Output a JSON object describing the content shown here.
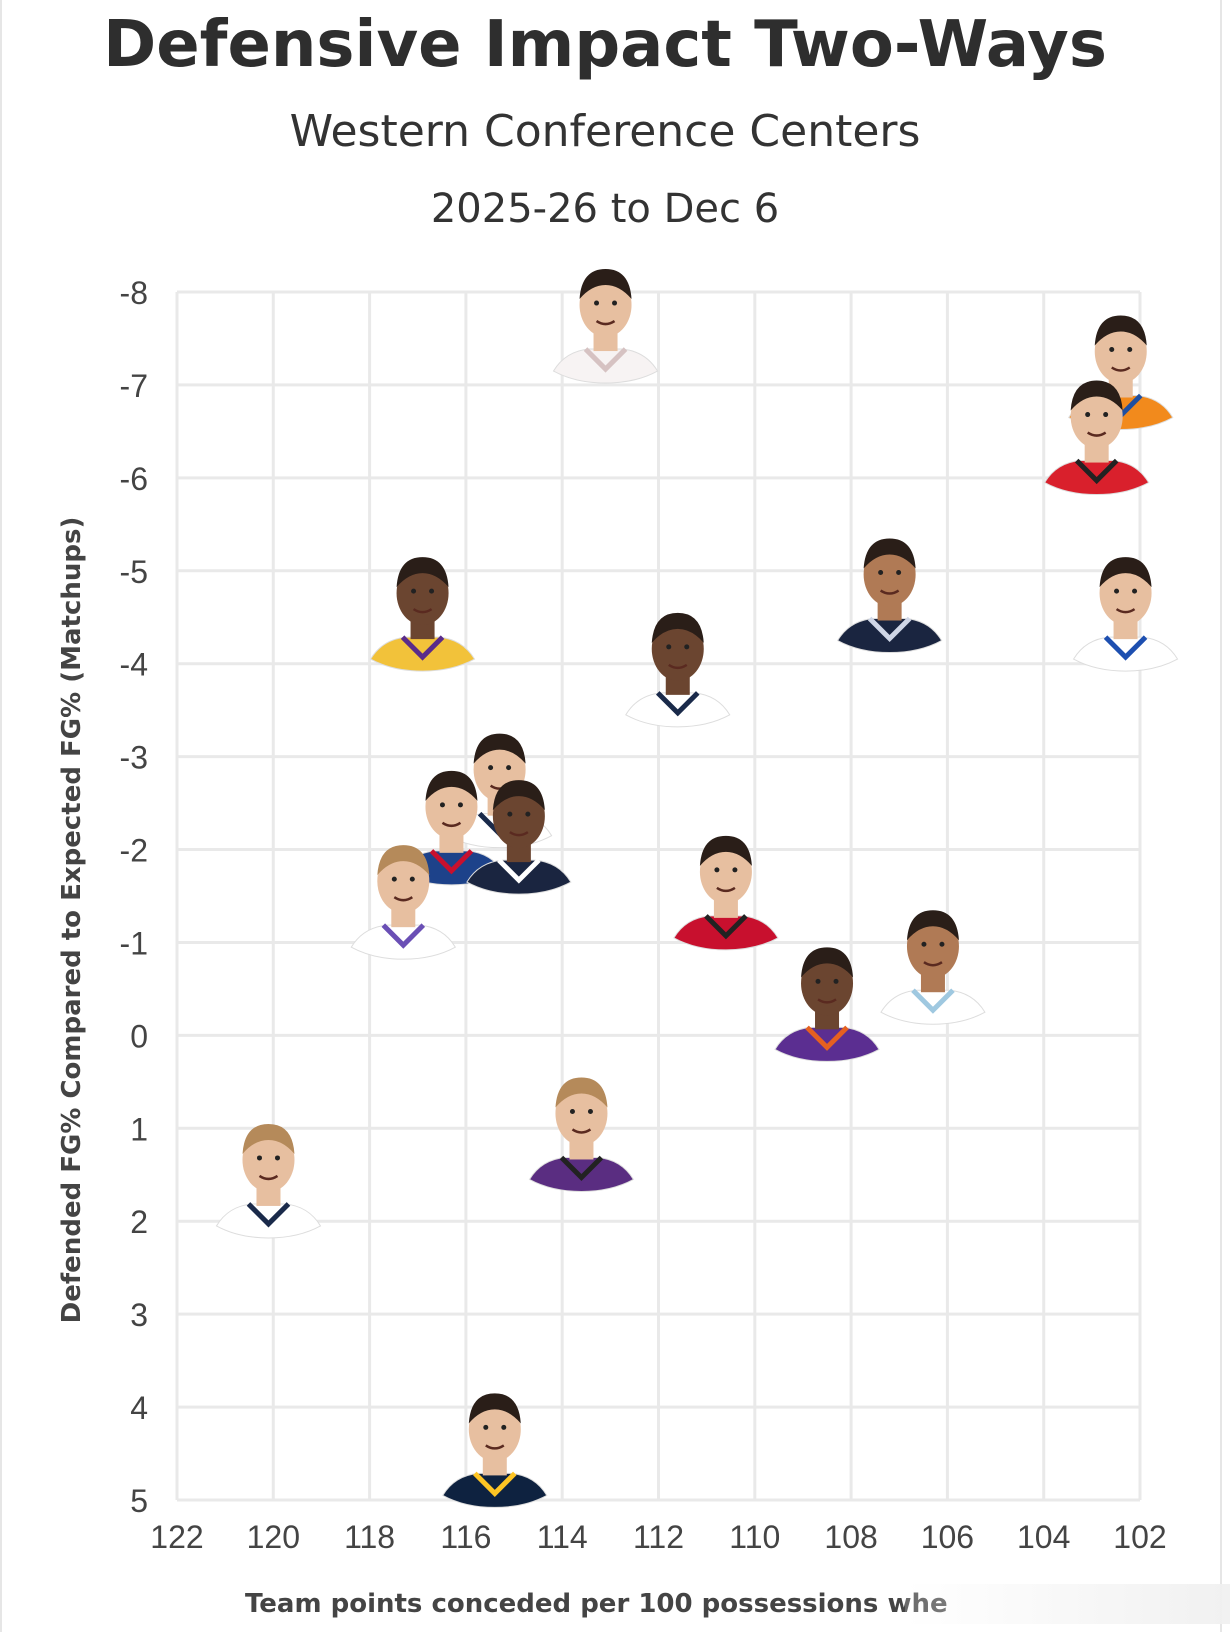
{
  "title": "Defensive Impact Two-Ways",
  "subtitle": "Western Conference Centers",
  "date_range": "2025-26 to Dec 6",
  "colors": {
    "grid": "#e9e9e9",
    "skin_dark": "#6b4530",
    "skin_medium": "#b07a55",
    "skin_light": "#e7bfa0",
    "hair_dark": "#2a1e18",
    "hair_light": "#b58a5a"
  },
  "chart_data": {
    "type": "scatter",
    "title": "Defensive Impact Two-Ways",
    "subtitle": "Western Conference Centers",
    "xlabel": "Team points conceded per 100 possessions whe",
    "ylabel": "Defended FG% Compared to Expected FG% (Matchups)",
    "xlim": [
      122,
      102
    ],
    "ylim": [
      -8,
      5
    ],
    "x_reversed": true,
    "y_reversed": true,
    "grid": true,
    "xticks": [
      "122",
      "120",
      "118",
      "116",
      "114",
      "112",
      "110",
      "108",
      "106",
      "104",
      "102"
    ],
    "yticks": [
      "-8",
      "-7",
      "-6",
      "-5",
      "-4",
      "-3",
      "-2",
      "-1",
      "0",
      "1",
      "2",
      "3",
      "4",
      "5"
    ],
    "points": [
      {
        "x": 113.1,
        "y": -7.3,
        "jersey": "#f7f3f3",
        "trim": "#d6c2c2",
        "skin": "skin_light",
        "hair": "hair_dark"
      },
      {
        "x": 102.4,
        "y": -6.8,
        "jersey": "#f28a1c",
        "trim": "#1f4fa0",
        "skin": "skin_light",
        "hair": "hair_dark"
      },
      {
        "x": 102.9,
        "y": -6.1,
        "jersey": "#d9202c",
        "trim": "#222222",
        "skin": "skin_light",
        "hair": "hair_dark"
      },
      {
        "x": 107.2,
        "y": -4.4,
        "jersey": "#1a2540",
        "trim": "#cfd6e6",
        "skin": "skin_medium",
        "hair": "hair_dark"
      },
      {
        "x": 102.3,
        "y": -4.2,
        "jersey": "#ffffff",
        "trim": "#1d4fb0",
        "skin": "skin_light",
        "hair": "hair_dark"
      },
      {
        "x": 116.9,
        "y": -4.2,
        "jersey": "#f2c23a",
        "trim": "#5a2b8a",
        "skin": "skin_dark",
        "hair": "hair_dark"
      },
      {
        "x": 111.6,
        "y": -3.6,
        "jersey": "#ffffff",
        "trim": "#1a2a4a",
        "skin": "skin_dark",
        "hair": "hair_dark"
      },
      {
        "x": 115.3,
        "y": -2.3,
        "jersey": "#ffffff",
        "trim": "#1a2a4a",
        "skin": "skin_light",
        "hair": "hair_dark"
      },
      {
        "x": 116.3,
        "y": -1.9,
        "jersey": "#1d428a",
        "trim": "#c8102e",
        "skin": "skin_light",
        "hair": "hair_dark"
      },
      {
        "x": 114.9,
        "y": -1.8,
        "jersey": "#1a2540",
        "trim": "#ffffff",
        "skin": "skin_dark",
        "hair": "hair_dark"
      },
      {
        "x": 110.6,
        "y": -1.2,
        "jersey": "#c8102e",
        "trim": "#222222",
        "skin": "skin_light",
        "hair": "hair_dark"
      },
      {
        "x": 117.3,
        "y": -1.1,
        "jersey": "#ffffff",
        "trim": "#6a4fb5",
        "skin": "skin_light",
        "hair": "hair_light"
      },
      {
        "x": 106.3,
        "y": -0.4,
        "jersey": "#ffffff",
        "trim": "#9fc8e0",
        "skin": "skin_medium",
        "hair": "hair_dark"
      },
      {
        "x": 108.5,
        "y": 0.0,
        "jersey": "#5b2e91",
        "trim": "#e56020",
        "skin": "skin_dark",
        "hair": "hair_dark"
      },
      {
        "x": 113.6,
        "y": 1.4,
        "jersey": "#5a2d81",
        "trim": "#222222",
        "skin": "skin_light",
        "hair": "hair_light"
      },
      {
        "x": 120.1,
        "y": 1.9,
        "jersey": "#ffffff",
        "trim": "#1a2a4a",
        "skin": "skin_light",
        "hair": "hair_light"
      },
      {
        "x": 115.4,
        "y": 4.8,
        "jersey": "#0e2240",
        "trim": "#fec524",
        "skin": "skin_light",
        "hair": "hair_dark"
      }
    ]
  }
}
